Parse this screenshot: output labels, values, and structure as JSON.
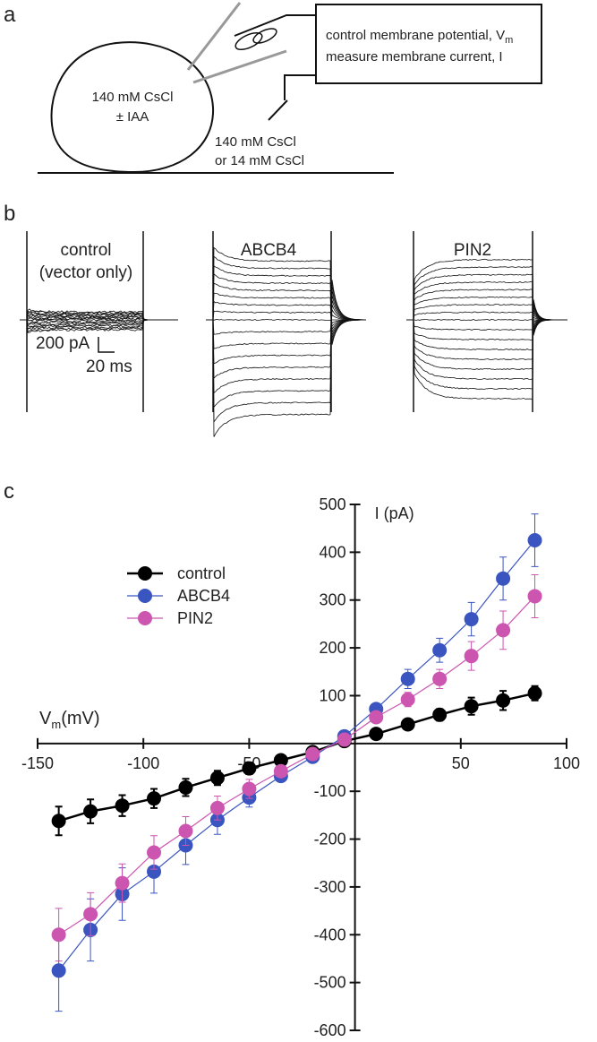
{
  "panels": {
    "a": {
      "label": "a",
      "cell_text": [
        "140 mM CsCl",
        "± IAA"
      ],
      "bath_text": [
        "140 mM CsCl",
        "or 14 mM CsCl"
      ],
      "box_text": [
        {
          "text": "control membrane potential, V",
          "subscript": "m"
        },
        {
          "text": "measure membrane current, I"
        }
      ]
    },
    "b": {
      "label": "b",
      "traces": [
        {
          "label": [
            "control",
            "(vector only)"
          ],
          "color": "#000000"
        },
        {
          "label": [
            "ABCB4"
          ],
          "color": "#3a4db0"
        },
        {
          "label": [
            "PIN2"
          ],
          "color": "#c0509e"
        }
      ],
      "scale_bar": [
        "200 pA",
        "20 ms"
      ]
    },
    "c": {
      "label": "c"
    }
  },
  "chart_data": {
    "type": "line",
    "x_label": {
      "symbol": "V",
      "subscript": "m",
      "unit": "(mV)"
    },
    "y_label": "I (pA)",
    "x": [
      -140,
      -125,
      -110,
      -95,
      -80,
      -65,
      -50,
      -35,
      -20,
      -5,
      10,
      25,
      40,
      55,
      70,
      85
    ],
    "series": [
      {
        "name": "control",
        "color": "#000000",
        "values": [
          -162,
          -142,
          -130,
          -115,
          -92,
          -72,
          -52,
          -35,
          -18,
          5,
          20,
          40,
          60,
          78,
          90,
          105
        ],
        "errors": [
          30,
          25,
          22,
          20,
          18,
          15,
          12,
          10,
          8,
          5,
          8,
          10,
          12,
          18,
          20,
          15
        ]
      },
      {
        "name": "ABCB4",
        "color": "#3a55c0",
        "values": [
          -475,
          -390,
          -315,
          -268,
          -213,
          -160,
          -113,
          -68,
          -28,
          15,
          72,
          135,
          195,
          260,
          345,
          425
        ],
        "errors": [
          85,
          65,
          55,
          45,
          40,
          30,
          20,
          12,
          8,
          6,
          10,
          20,
          25,
          35,
          45,
          55
        ]
      },
      {
        "name": "PIN2",
        "color": "#cc55b0",
        "values": [
          -400,
          -357,
          -292,
          -228,
          -183,
          -135,
          -95,
          -58,
          -22,
          8,
          55,
          92,
          135,
          183,
          237,
          308
        ],
        "errors": [
          55,
          45,
          40,
          35,
          30,
          25,
          20,
          12,
          8,
          5,
          8,
          15,
          20,
          30,
          40,
          45
        ]
      }
    ],
    "xlim": [
      -150,
      100
    ],
    "ylim": [
      -600,
      500
    ],
    "xticks": [
      -150,
      -100,
      -50,
      50,
      100
    ],
    "yticks": [
      -600,
      -500,
      -400,
      -300,
      -200,
      -100,
      100,
      200,
      300,
      400,
      500
    ],
    "legend": "upper left"
  }
}
